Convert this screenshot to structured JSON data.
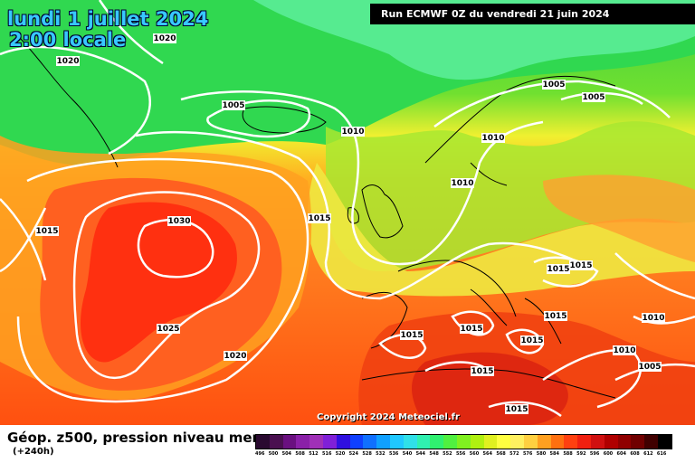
{
  "header": {
    "date_line": "lundi 1 juillet 2024",
    "time_line": "2:00 locale",
    "run_info": "Run ECMWF 0Z du vendredi 21 juin 2024"
  },
  "footer": {
    "title": "Géop. z500, pression niveau mer",
    "lead": "(+240h)",
    "copyright": "Copyright 2024 Meteociel.fr"
  },
  "scale": {
    "ticks": [
      "496",
      "500",
      "504",
      "508",
      "512",
      "516",
      "520",
      "524",
      "528",
      "532",
      "536",
      "540",
      "544",
      "548",
      "552",
      "556",
      "560",
      "564",
      "568",
      "572",
      "576",
      "580",
      "584",
      "588",
      "592",
      "596",
      "600",
      "604",
      "608",
      "612",
      "616"
    ],
    "colors": [
      "#2a0a30",
      "#4a1050",
      "#6a1080",
      "#8a20a8",
      "#a030b8",
      "#8020d8",
      "#3010e0",
      "#1040ff",
      "#1070ff",
      "#10a0ff",
      "#20c8ff",
      "#30e0e8",
      "#30f0b0",
      "#30f070",
      "#50f040",
      "#80f020",
      "#b0f010",
      "#e0f020",
      "#ffff40",
      "#fff060",
      "#ffd040",
      "#ffa020",
      "#ff7010",
      "#ff4010",
      "#f02010",
      "#d01010",
      "#b00000",
      "#900000",
      "#700000",
      "#400000",
      "#000000"
    ]
  },
  "isobars": [
    {
      "value": "1030"
    },
    {
      "value": "1025"
    },
    {
      "value": "1020"
    },
    {
      "value": "1020"
    },
    {
      "value": "1020"
    },
    {
      "value": "1015"
    },
    {
      "value": "1015"
    },
    {
      "value": "1015"
    },
    {
      "value": "1015"
    },
    {
      "value": "1015"
    },
    {
      "value": "1015"
    },
    {
      "value": "1015"
    },
    {
      "value": "1015"
    },
    {
      "value": "1015"
    },
    {
      "value": "1015"
    },
    {
      "value": "1010"
    },
    {
      "value": "1010"
    },
    {
      "value": "1010"
    },
    {
      "value": "1010"
    },
    {
      "value": "1010"
    },
    {
      "value": "1005"
    },
    {
      "value": "1005"
    },
    {
      "value": "1005"
    },
    {
      "value": "1005"
    }
  ]
}
